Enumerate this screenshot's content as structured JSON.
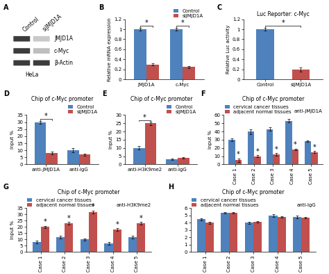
{
  "chart_data": [
    {
      "type": "western_blot",
      "panel": "A",
      "lanes": [
        "Control",
        "siJMJD1A"
      ],
      "cell_line": "HeLa",
      "bands": [
        {
          "name": "JMJD1A",
          "intensity": [
            0.9,
            0.25
          ]
        },
        {
          "name": "c-Myc",
          "intensity": [
            0.9,
            0.3
          ]
        },
        {
          "name": "β-Actin",
          "intensity": [
            0.9,
            0.9
          ]
        }
      ]
    },
    {
      "type": "bar",
      "panel": "B",
      "ylabel": "Relative mRNA expression",
      "categories": [
        "JMJD1A",
        "c-Myc"
      ],
      "series": [
        {
          "name": "Control",
          "color": "#4f81bd",
          "values": [
            1,
            1
          ],
          "errors": [
            0.03,
            0.03
          ]
        },
        {
          "name": "siJMJD1A",
          "color": "#c0504d",
          "values": [
            0.3,
            0.25
          ],
          "errors": [
            0.02,
            0.02
          ]
        }
      ],
      "ylim": [
        0,
        1.2
      ],
      "yticks": [
        0,
        0.2,
        0.4,
        0.6,
        0.8,
        1,
        1.2
      ],
      "legend": "upper right",
      "annotations": [
        {
          "text": "*",
          "categories": [
            "JMJD1A"
          ]
        },
        {
          "text": "*",
          "categories": [
            "c-Myc"
          ]
        }
      ]
    },
    {
      "type": "bar",
      "panel": "C",
      "title": "Luc Reporter: c-Myc",
      "ylabel": "Relative Luc activity",
      "categories": [
        "Control",
        "siJMJD1A"
      ],
      "values": [
        1,
        0.2
      ],
      "errors": [
        0.03,
        0.04
      ],
      "colors": [
        "#4f81bd",
        "#c0504d"
      ],
      "ylim": [
        0,
        1.2
      ],
      "yticks": [
        0,
        0.2,
        0.4,
        0.6,
        0.8,
        1,
        1.2
      ],
      "annotations": [
        {
          "text": "*",
          "categories": [
            "Control",
            "siJMJD1A"
          ]
        }
      ]
    },
    {
      "type": "bar",
      "panel": "D",
      "title": "Chip of c-Myc promoter",
      "ylabel": "Input %",
      "categories": [
        "anti-JMJD1A",
        "anti-IgG"
      ],
      "series": [
        {
          "name": "Control",
          "color": "#4f81bd",
          "values": [
            30,
            10
          ],
          "errors": [
            1,
            1.5
          ]
        },
        {
          "name": "siJMJD1A",
          "color": "#c0504d",
          "values": [
            8,
            7
          ],
          "errors": [
            1,
            0.8
          ]
        }
      ],
      "ylim": [
        0,
        35
      ],
      "yticks": [
        0,
        5,
        10,
        15,
        20,
        25,
        30,
        35
      ],
      "legend": "upper right",
      "annotations": [
        {
          "text": "*",
          "categories": [
            "anti-JMJD1A"
          ]
        }
      ]
    },
    {
      "type": "bar",
      "panel": "E",
      "title": "Chip of c-Myc promoter",
      "ylabel": "Input %",
      "categories": [
        "anti-H3K9me2",
        "anti-IgG"
      ],
      "series": [
        {
          "name": "Control",
          "color": "#4f81bd",
          "values": [
            10,
            3
          ],
          "errors": [
            1,
            0.4
          ]
        },
        {
          "name": "siJMJD1A",
          "color": "#c0504d",
          "values": [
            25,
            4
          ],
          "errors": [
            1,
            0.5
          ]
        }
      ],
      "ylim": [
        0,
        30
      ],
      "yticks": [
        0,
        5,
        10,
        15,
        20,
        25,
        30
      ],
      "legend": "upper right",
      "annotations": [
        {
          "text": "*",
          "categories": [
            "anti-H3K9me2"
          ]
        }
      ]
    },
    {
      "type": "bar",
      "panel": "F",
      "title": "Chip of c-Myc promoter",
      "subtitle": "anti-JMJD1A",
      "ylabel": "Input %",
      "categories": [
        "Case 1",
        "Case 2",
        "Case 3",
        "Case 4",
        "Case 5"
      ],
      "series": [
        {
          "name": "cervical cancer tissues",
          "color": "#4f81bd",
          "values": [
            30,
            40,
            43,
            53,
            28
          ],
          "errors": [
            1.5,
            3,
            2,
            2,
            1
          ]
        },
        {
          "name": "adjacent normal tissues",
          "color": "#c0504d",
          "values": [
            5,
            10,
            12,
            18,
            15
          ],
          "errors": [
            2,
            1,
            1.5,
            1,
            1
          ]
        }
      ],
      "ylim": [
        0,
        60
      ],
      "yticks": [
        0,
        10,
        20,
        30,
        40,
        50,
        60
      ],
      "legend": "upper left",
      "annotations": [
        {
          "text": "*",
          "categories": [
            "Case 1"
          ],
          "series": "adjacent normal tissues"
        },
        {
          "text": "*",
          "categories": [
            "Case 2"
          ],
          "series": "adjacent normal tissues"
        },
        {
          "text": "*",
          "categories": [
            "Case 3"
          ],
          "series": "adjacent normal tissues"
        },
        {
          "text": "*",
          "categories": [
            "Case 4"
          ],
          "series": "adjacent normal tissues"
        },
        {
          "text": "*",
          "categories": [
            "Case 5"
          ],
          "series": "adjacent normal tissues"
        }
      ]
    },
    {
      "type": "bar",
      "panel": "G",
      "title": "Chip of c-Myc promoter",
      "subtitle": "anti-H3K9me2",
      "ylabel": "Input %",
      "categories": [
        "Case 1",
        "Case 2",
        "Case 3",
        "Case 4",
        "Case 5"
      ],
      "series": [
        {
          "name": "cervical cancer tissues",
          "color": "#4f81bd",
          "values": [
            8,
            12,
            10,
            7,
            12
          ],
          "errors": [
            1,
            1,
            1,
            1,
            1
          ]
        },
        {
          "name": "adjacent normal tissues",
          "color": "#c0504d",
          "values": [
            20,
            23,
            32,
            18,
            23
          ],
          "errors": [
            1,
            1,
            1,
            1,
            1
          ]
        }
      ],
      "ylim": [
        0,
        35
      ],
      "yticks": [
        0,
        5,
        10,
        15,
        20,
        25,
        30,
        35
      ],
      "legend": "upper left",
      "annotations": [
        {
          "text": "*",
          "categories": [
            "Case 1"
          ],
          "series": "adjacent normal tissues"
        },
        {
          "text": "*",
          "categories": [
            "Case 2"
          ],
          "series": "adjacent normal tissues"
        },
        {
          "text": "*",
          "categories": [
            "Case 3"
          ],
          "series": "adjacent normal tissues"
        },
        {
          "text": "*",
          "categories": [
            "Case 4"
          ],
          "series": "adjacent normal tissues"
        },
        {
          "text": "*",
          "categories": [
            "Case 5"
          ],
          "series": "adjacent normal tissues"
        }
      ]
    },
    {
      "type": "bar",
      "panel": "H",
      "title": "Chip of c-Myc promoter",
      "subtitle": "anti-IgG",
      "categories": [
        "Case 1",
        "Case 2",
        "Case 3",
        "Case 4",
        "Case 5"
      ],
      "series": [
        {
          "name": "cervical cancer tissues",
          "color": "#4f81bd",
          "values": [
            4.5,
            5.4,
            4.0,
            5.0,
            4.8
          ],
          "errors": [
            0.15,
            0.1,
            0.1,
            0.15,
            0.15
          ]
        },
        {
          "name": "adjacent normal tissues",
          "color": "#c0504d",
          "values": [
            4.0,
            5.4,
            4.1,
            4.8,
            4.7
          ],
          "errors": [
            0.1,
            0.1,
            0.1,
            0.1,
            0.1
          ]
        }
      ],
      "ylim": [
        0,
        6
      ],
      "yticks": [
        0,
        1,
        2,
        3,
        4,
        5,
        6
      ],
      "legend": "upper left"
    }
  ]
}
